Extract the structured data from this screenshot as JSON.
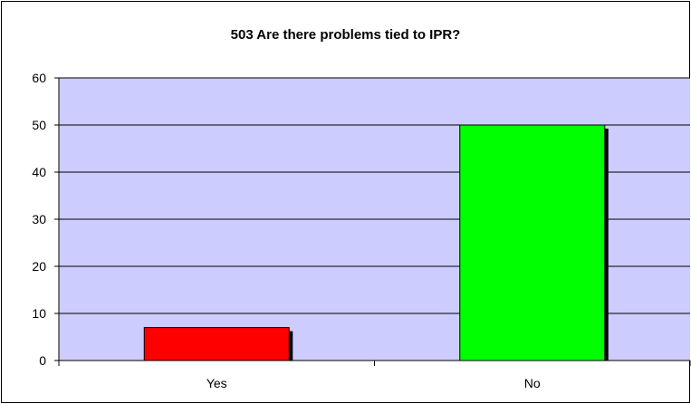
{
  "chart_data": {
    "type": "bar",
    "title": "503 Are there problems tied to IPR?",
    "xlabel": "",
    "ylabel": "",
    "categories": [
      "Yes",
      "No"
    ],
    "values": [
      7,
      50
    ],
    "ylim": [
      0,
      60
    ],
    "yticks": [
      "0",
      "10",
      "20",
      "30",
      "40",
      "50",
      "60"
    ],
    "bar_colors": [
      "#ff0000",
      "#00ff00"
    ],
    "plot_background": "#ccccff",
    "grid": true,
    "legend": "none"
  }
}
